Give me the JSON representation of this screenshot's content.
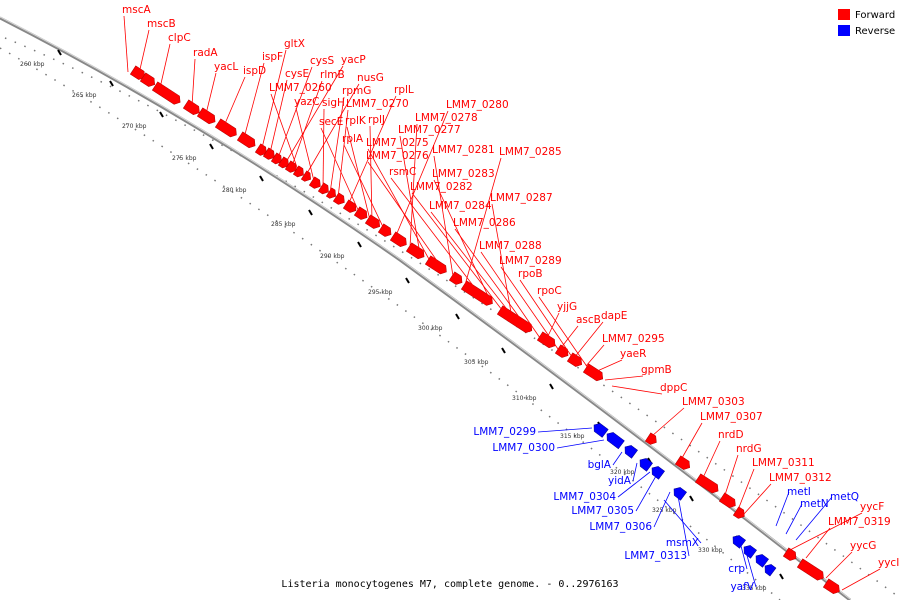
{
  "map": {
    "caption": "Listeria monocytogenes M7, complete genome. - 0..2976163",
    "legend": [
      {
        "label": "Forward",
        "color": "#ff0000"
      },
      {
        "label": "Reverse",
        "color": "#0000ff"
      }
    ],
    "backbone_color": "#999999",
    "ticks": [
      "260 kbp",
      "265 kbp",
      "270 kbp",
      "275 kbp",
      "280 kbp",
      "285 kbp",
      "290 kbp",
      "295 kbp",
      "300 kbp",
      "305 kbp",
      "310 kbp",
      "315 kbp",
      "320 kbp",
      "325 kbp",
      "330 kbp",
      "335 kbp"
    ],
    "forward_labels": [
      "mscA",
      "mscB",
      "clpC",
      "radA",
      "yacL",
      "ispD",
      "ispF",
      "gltX",
      "cysE",
      "cysS",
      "yacP",
      "rlmB",
      "LMM7_0260",
      "nusG",
      "yazC",
      "sigH",
      "rpmG",
      "LMM7_0270",
      "rplL",
      "secE",
      "rplK",
      "rplJ",
      "rplA",
      "LMM7_0280",
      "LMM7_0278",
      "LMM7_0277",
      "LMM7_0275",
      "LMM7_0276",
      "LMM7_0281",
      "LMM7_0285",
      "rsmC",
      "LMM7_0283",
      "LMM7_0282",
      "LMM7_0287",
      "LMM7_0284",
      "LMM7_0286",
      "LMM7_0288",
      "LMM7_0289",
      "rpoB",
      "rpoC",
      "yjjG",
      "ascB",
      "dapE",
      "LMM7_0295",
      "yaeR",
      "gpmB",
      "dppC",
      "LMM7_0303",
      "LMM7_0307",
      "nrdD",
      "nrdG",
      "LMM7_0311",
      "LMM7_0312",
      "yycF",
      "LMM7_0319",
      "yycG",
      "yycI"
    ],
    "reverse_labels": [
      "LMM7_0299",
      "LMM7_0300",
      "bglA",
      "yidA",
      "LMM7_0304",
      "LMM7_0305",
      "LMM7_0306",
      "msmX",
      "LMM7_0313",
      "crp",
      "yafV",
      "metI",
      "metN",
      "metQ"
    ]
  }
}
